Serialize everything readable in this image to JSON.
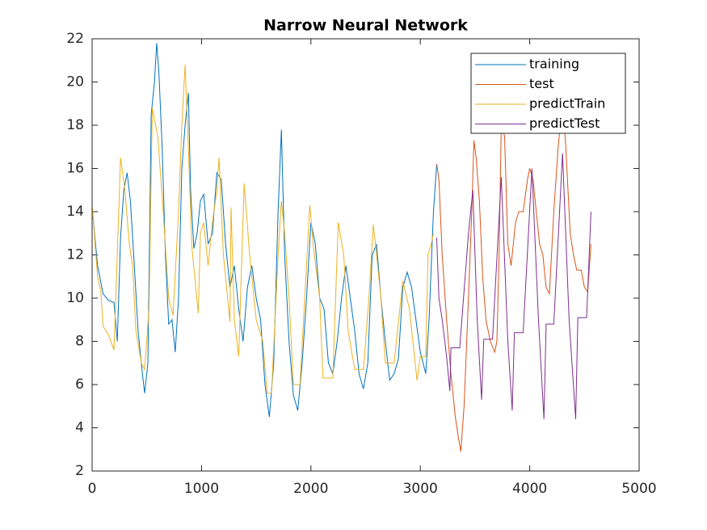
{
  "chart_data": {
    "type": "line",
    "title": "Narrow Neural Network",
    "xlim": [
      0,
      5000
    ],
    "xticks": [
      0,
      1000,
      2000,
      3000,
      4000,
      5000
    ],
    "ylim": [
      2,
      22
    ],
    "yticks": [
      2,
      4,
      6,
      8,
      10,
      12,
      14,
      16,
      18,
      20,
      22
    ],
    "legend": "northeast",
    "series": [
      {
        "name": "training",
        "color": "#0072bd",
        "x": [
          0,
          50,
          100,
          150,
          200,
          230,
          260,
          290,
          320,
          350,
          380,
          420,
          460,
          480,
          510,
          540,
          570,
          590,
          610,
          640,
          670,
          700,
          730,
          760,
          790,
          820,
          850,
          880,
          900,
          930,
          960,
          990,
          1020,
          1060,
          1100,
          1140,
          1180,
          1220,
          1260,
          1300,
          1340,
          1380,
          1420,
          1460,
          1500,
          1540,
          1580,
          1620,
          1660,
          1700,
          1730,
          1760,
          1800,
          1840,
          1880,
          1920,
          1960,
          2000,
          2040,
          2080,
          2120,
          2160,
          2200,
          2240,
          2280,
          2320,
          2360,
          2400,
          2440,
          2480,
          2520,
          2560,
          2600,
          2640,
          2680,
          2720,
          2760,
          2800,
          2840,
          2880,
          2920,
          2960,
          3000,
          3050,
          3080,
          3120,
          3150
        ],
        "values": [
          14.2,
          11.5,
          10.2,
          9.9,
          9.8,
          8.0,
          12.8,
          15.0,
          15.8,
          14.5,
          12.0,
          8.5,
          6.5,
          5.6,
          7.0,
          18.5,
          20.0,
          21.8,
          20.5,
          17.0,
          12.0,
          8.8,
          9.0,
          7.5,
          10.0,
          16.0,
          18.0,
          19.5,
          15.0,
          12.3,
          13.0,
          14.5,
          14.8,
          12.5,
          13.0,
          15.8,
          15.5,
          12.5,
          10.5,
          11.5,
          9.5,
          8.0,
          10.5,
          11.5,
          10.0,
          9.0,
          6.0,
          4.5,
          7.0,
          14.0,
          17.8,
          12.0,
          8.0,
          5.5,
          4.8,
          7.0,
          10.0,
          13.5,
          12.5,
          10.0,
          9.5,
          7.0,
          6.5,
          8.0,
          10.0,
          11.5,
          10.0,
          8.5,
          6.5,
          5.8,
          7.0,
          12.0,
          12.5,
          10.0,
          8.0,
          6.2,
          6.5,
          7.2,
          10.5,
          11.2,
          10.5,
          9.0,
          7.5,
          6.5,
          9.0,
          14.0,
          16.2
        ]
      },
      {
        "name": "test",
        "color": "#d95319",
        "x": [
          3150,
          3170,
          3200,
          3240,
          3280,
          3320,
          3350,
          3370,
          3400,
          3440,
          3470,
          3490,
          3510,
          3540,
          3570,
          3600,
          3640,
          3680,
          3700,
          3720,
          3740,
          3770,
          3800,
          3830,
          3870,
          3900,
          3940,
          3980,
          4000,
          4030,
          4060,
          4090,
          4120,
          4150,
          4180,
          4220,
          4260,
          4300,
          4330,
          4370,
          4400,
          4430,
          4470,
          4500,
          4530,
          4560
        ],
        "values": [
          16.2,
          15.5,
          12.0,
          9.0,
          6.5,
          4.5,
          3.5,
          2.9,
          5.0,
          10.0,
          14.0,
          17.3,
          16.5,
          14.5,
          11.0,
          9.0,
          8.0,
          7.5,
          8.0,
          12.0,
          18.0,
          17.5,
          12.5,
          11.5,
          13.5,
          14.0,
          14.0,
          15.5,
          16.0,
          15.5,
          14.0,
          12.5,
          12.0,
          10.5,
          10.2,
          14.0,
          17.0,
          19.0,
          17.0,
          13.0,
          12.0,
          11.3,
          11.3,
          10.5,
          10.3,
          12.5
        ]
      },
      {
        "name": "predictTrain",
        "color": "#edb120",
        "x": [
          0,
          50,
          80,
          100,
          150,
          200,
          230,
          260,
          300,
          340,
          370,
          400,
          450,
          480,
          520,
          550,
          600,
          650,
          700,
          740,
          790,
          820,
          850,
          880,
          910,
          970,
          990,
          1020,
          1060,
          1100,
          1140,
          1160,
          1200,
          1260,
          1270,
          1300,
          1340,
          1390,
          1440,
          1500,
          1560,
          1600,
          1640,
          1700,
          1730,
          1760,
          1800,
          1840,
          1900,
          1990,
          2020,
          2080,
          2110,
          2200,
          2250,
          2300,
          2340,
          2400,
          2480,
          2530,
          2570,
          2600,
          2640,
          2680,
          2760,
          2840,
          2900,
          2970,
          3000,
          3050,
          3070,
          3100,
          3120
        ],
        "values": [
          14.3,
          11.0,
          10.3,
          8.7,
          8.3,
          7.6,
          12.0,
          16.5,
          15.0,
          12.5,
          11.5,
          8.5,
          7.0,
          6.7,
          9.5,
          18.8,
          17.5,
          14.0,
          10.0,
          9.2,
          14.0,
          18.0,
          20.8,
          17.0,
          12.5,
          9.3,
          13.0,
          13.5,
          11.5,
          13.5,
          15.0,
          16.5,
          12.0,
          8.9,
          14.2,
          9.0,
          7.3,
          15.3,
          12.0,
          9.0,
          8.0,
          5.6,
          5.6,
          12.0,
          14.5,
          13.0,
          10.0,
          6.0,
          6.0,
          14.3,
          12.5,
          10.0,
          6.3,
          6.3,
          13.5,
          12.0,
          8.5,
          6.7,
          6.7,
          10.0,
          13.4,
          12.0,
          10.0,
          7.0,
          7.0,
          10.8,
          9.5,
          6.2,
          7.3,
          7.3,
          12.0,
          12.5,
          13.0
        ]
      },
      {
        "name": "predictTest",
        "color": "#7e2f8e",
        "x": [
          3150,
          3170,
          3200,
          3240,
          3270,
          3280,
          3360,
          3440,
          3480,
          3520,
          3560,
          3580,
          3660,
          3740,
          3800,
          3840,
          3860,
          3940,
          4020,
          4080,
          4130,
          4150,
          4220,
          4300,
          4360,
          4420,
          4440,
          4520,
          4560
        ],
        "values": [
          12.8,
          10.0,
          9.0,
          7.3,
          5.7,
          7.7,
          7.7,
          13.0,
          15.0,
          9.0,
          5.3,
          8.1,
          8.1,
          15.6,
          8.0,
          4.8,
          8.4,
          8.4,
          16.0,
          9.0,
          4.4,
          8.8,
          8.8,
          16.7,
          9.0,
          4.4,
          9.1,
          9.1,
          14.0
        ]
      }
    ]
  }
}
